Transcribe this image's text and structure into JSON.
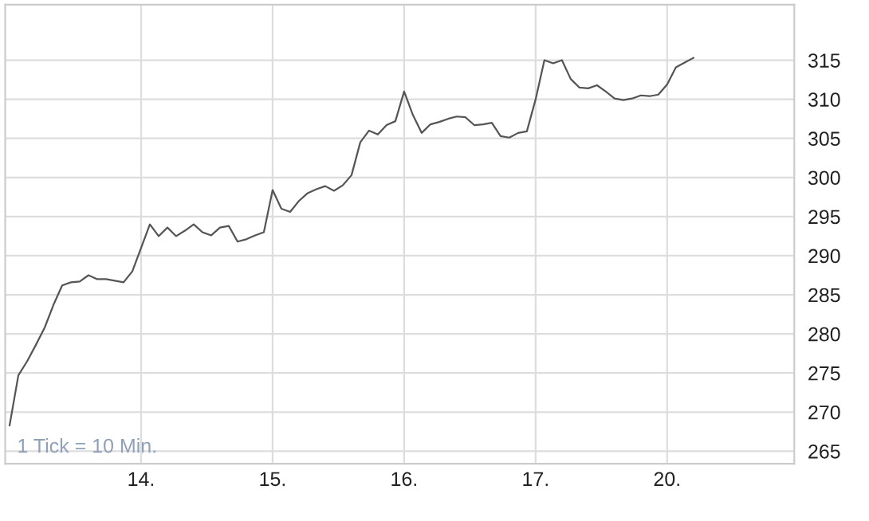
{
  "chart_data": {
    "type": "line",
    "annotations": [
      "1 Tick = 10 Min."
    ],
    "categories": [
      null,
      null,
      null,
      null,
      null,
      null,
      null,
      null,
      null,
      null,
      null,
      null,
      null,
      null,
      null,
      "14.",
      null,
      null,
      null,
      null,
      null,
      null,
      null,
      null,
      null,
      null,
      null,
      null,
      null,
      null,
      "15.",
      null,
      null,
      null,
      null,
      null,
      null,
      null,
      null,
      null,
      null,
      null,
      null,
      null,
      null,
      "16.",
      null,
      null,
      null,
      null,
      null,
      null,
      null,
      null,
      null,
      null,
      null,
      null,
      null,
      null,
      "17.",
      null,
      null,
      null,
      null,
      null,
      null,
      null,
      null,
      null,
      null,
      null,
      null,
      null,
      null,
      "20.",
      null,
      null,
      null,
      null,
      null,
      null,
      null,
      null,
      null,
      null,
      null,
      null,
      null,
      null
    ],
    "series": [
      {
        "color": "#555555",
        "values": [
          268.3,
          274.7,
          276.5,
          278.6,
          280.8,
          283.7,
          286.2,
          286.6,
          286.7,
          287.5,
          287,
          287,
          286.8,
          286.6,
          288,
          291,
          294,
          292.5,
          293.6,
          292.5,
          293.2,
          294,
          293,
          292.6,
          293.6,
          293.8,
          291.8,
          292.1,
          292.6,
          293,
          298.4,
          296,
          295.6,
          297,
          298,
          298.5,
          298.9,
          298.3,
          299,
          300.3,
          304.5,
          306,
          305.5,
          306.7,
          307.2,
          311,
          308,
          305.7,
          306.8,
          307.1,
          307.5,
          307.8,
          307.7,
          306.7,
          306.8,
          307,
          305.3,
          305.1,
          305.7,
          305.9,
          310,
          315,
          314.6,
          315,
          312.6,
          311.5,
          311.4,
          311.8,
          311,
          310.1,
          309.9,
          310.1,
          310.5,
          310.4,
          310.6,
          311.9,
          314.1,
          314.7,
          315.3,
          null,
          null,
          null,
          null,
          null,
          null,
          null,
          null,
          null,
          null,
          null
        ]
      }
    ],
    "ylim": [
      263.4,
      322.1
    ],
    "yticks": [
      265,
      270,
      275,
      280,
      285,
      290,
      295,
      300,
      305,
      310,
      315
    ],
    "grid": true,
    "marker": "none",
    "line_style": "solid"
  }
}
